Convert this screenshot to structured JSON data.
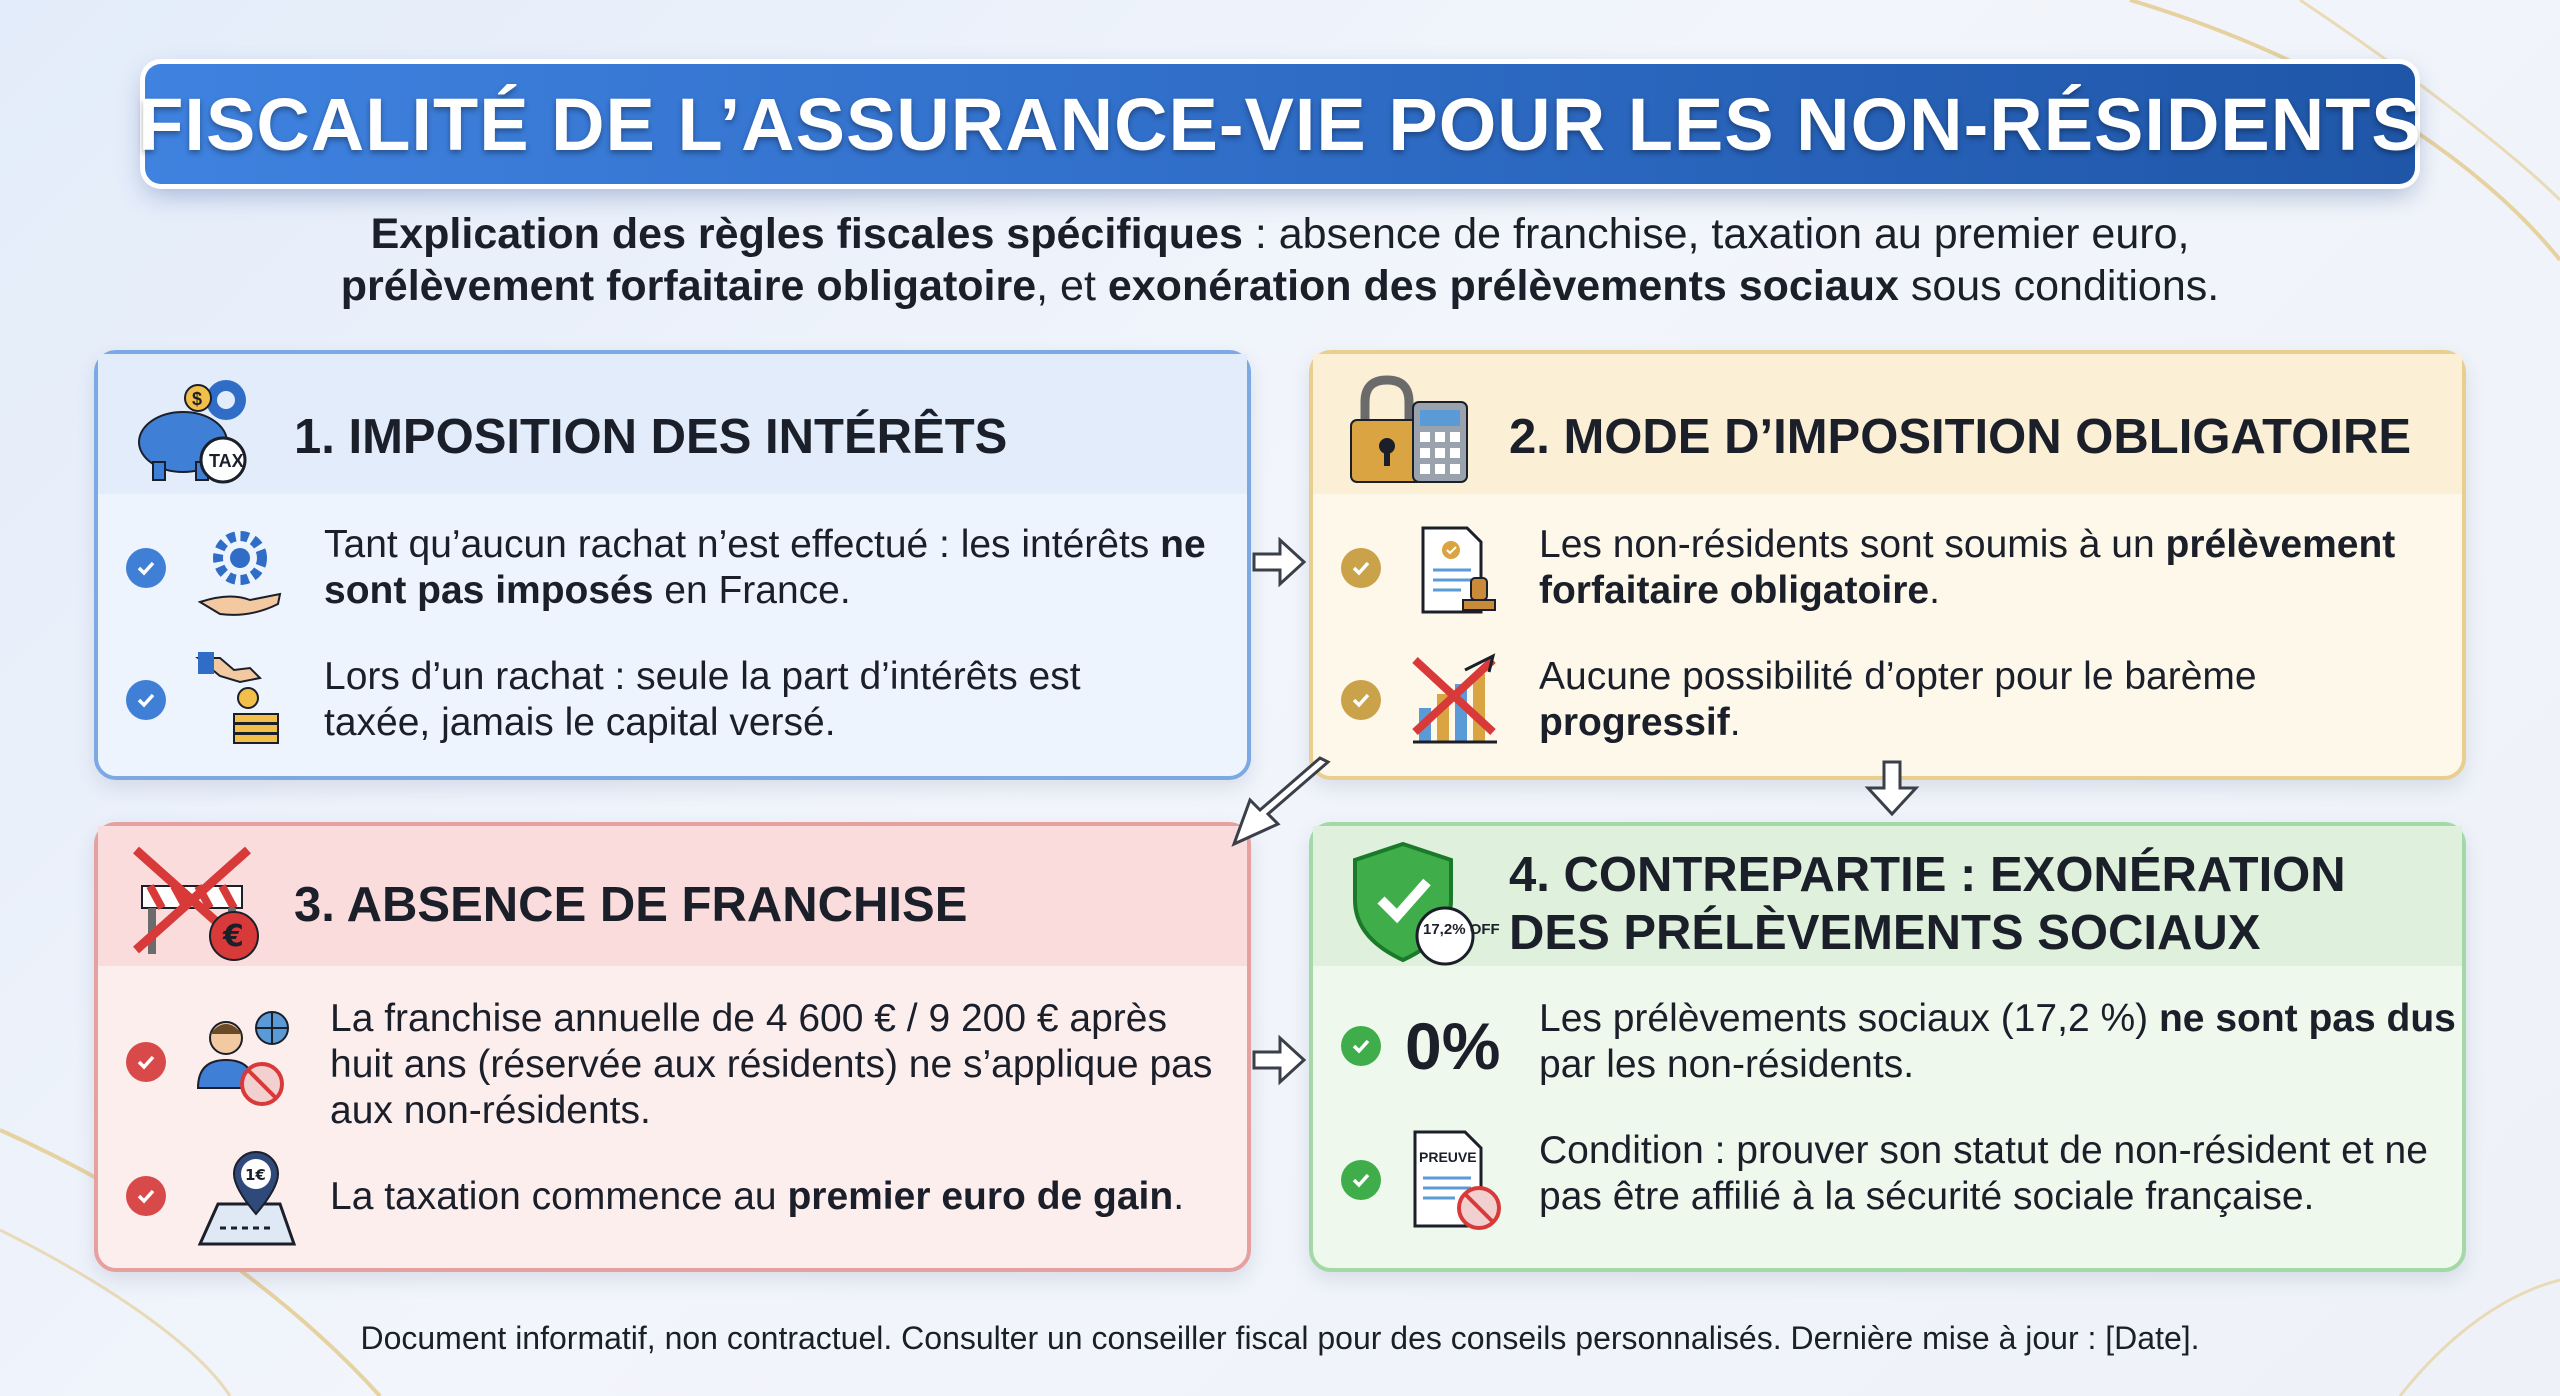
{
  "title": "FISCALITÉ DE L’ASSURANCE-VIE POUR LES NON-RÉSIDENTS",
  "subtitle": {
    "line1_bold": "Explication des règles fiscales spécifiques",
    "line1_rest": " : absence de franchise, taxation au premier euro,",
    "line2_bold1": "prélèvement forfaitaire obligatoire",
    "line2_mid": ", et ",
    "line2_bold2": "exonération des prélèvements sociaux",
    "line2_rest": " sous conditions."
  },
  "cards": [
    {
      "title": "1. IMPOSITION DES INTÉRÊTS",
      "icon": "piggy-bank-tax-icon",
      "accent": "#3f7fd6",
      "items": [
        {
          "icon": "gear-hand-icon",
          "text_a": "Tant qu’aucun rachat n’est effectué : les intérêts ",
          "bold": "ne sont pas imposés",
          "text_b": " en France."
        },
        {
          "icon": "coin-hand-icon",
          "text_a": "Lors d’un rachat : seule la part d’intérêts est taxée, jamais le capital versé.",
          "bold": "",
          "text_b": ""
        }
      ]
    },
    {
      "title": "2. MODE D’IMPOSITION OBLIGATOIRE",
      "icon": "padlock-calculator-icon",
      "accent": "#c9a24a",
      "items": [
        {
          "icon": "document-stamp-icon",
          "text_a": "Les non-résidents sont soumis à un ",
          "bold": "prélèvement forfaitaire obligatoire",
          "text_b": "."
        },
        {
          "icon": "crossed-chart-icon",
          "text_a": "Aucune possibilité d’opter pour le barème ",
          "bold": "progressif",
          "text_b": "."
        }
      ]
    },
    {
      "title": "3. ABSENCE DE FRANCHISE",
      "icon": "barrier-euro-icon",
      "accent": "#d84a4a",
      "items": [
        {
          "icon": "person-globe-icon",
          "text_a": "La franchise annuelle de 4 600 € / 9 200 € après huit ans (réservée aux résidents) ne s’applique pas aux non-résidents.",
          "bold": "",
          "text_b": ""
        },
        {
          "icon": "map-pin-euro-icon",
          "text_a": "La taxation commence au ",
          "bold": "premier euro de gain",
          "text_b": "."
        }
      ]
    },
    {
      "title_line1": "4. CONTREPARTIE : EXONÉRATION",
      "title_line2": "DES PRÉLÈVEMENTS SOCIAUX",
      "icon": "shield-check-icon",
      "badge": "17,2% OFF",
      "accent": "#3fae4a",
      "zero": "0%",
      "items": [
        {
          "icon": "zero-percent-icon",
          "text_a": "Les prélèvements sociaux (17,2 %) ",
          "bold": "ne sont pas dus",
          "text_b": " par les non-résidents."
        },
        {
          "icon": "proof-document-icon",
          "icon_label": "PREUVE",
          "text_a": "Condition : prouver son statut de non-résident et ne pas être affilié à la sécurité sociale française.",
          "bold": "",
          "text_b": ""
        }
      ]
    }
  ],
  "footer": "Document informatif, non contractuel. Consulter un conseiller fiscal pour des conseils personnalisés. Dernière mise à jour : [Date]."
}
